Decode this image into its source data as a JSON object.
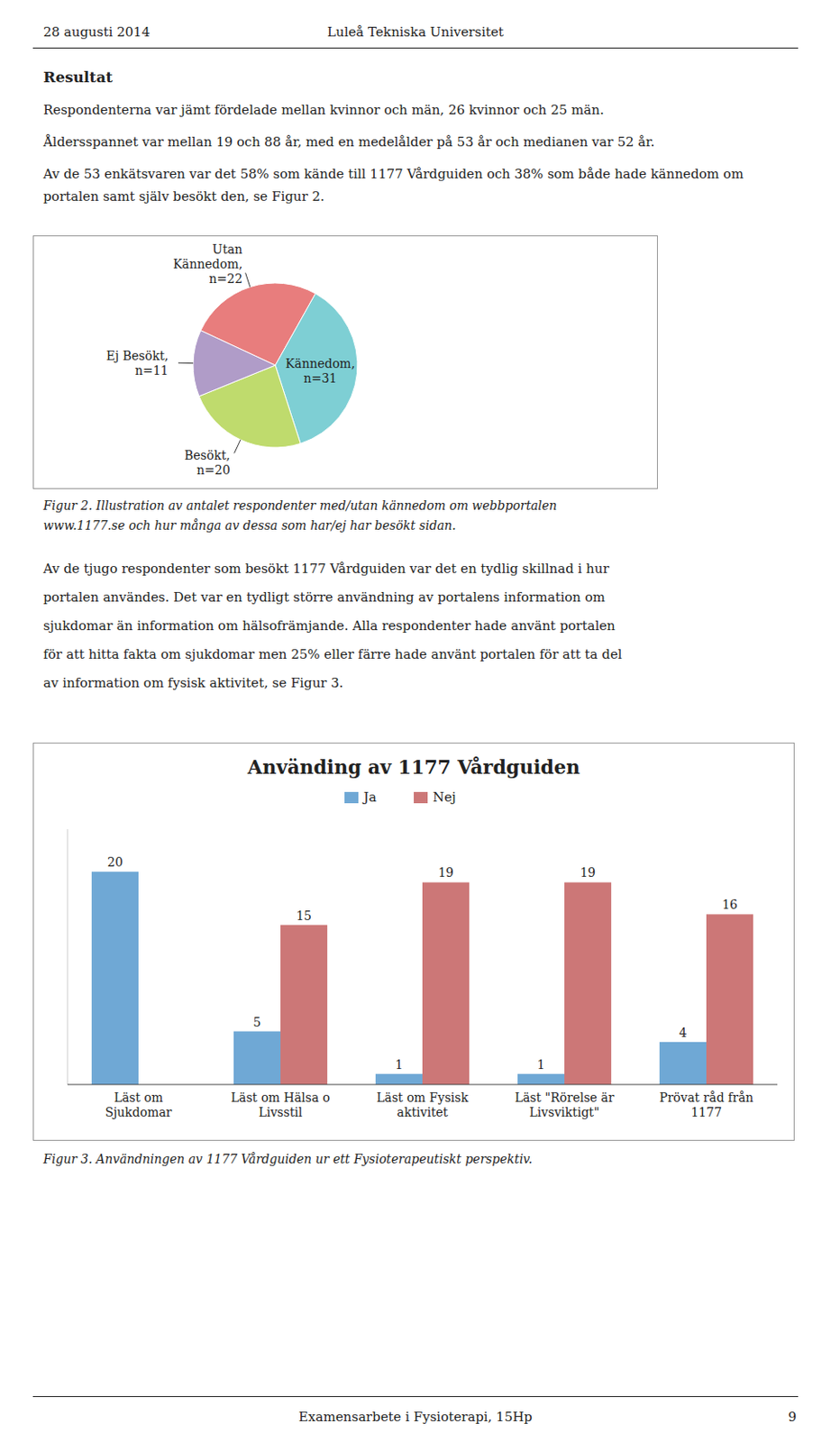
{
  "page": {
    "header_left": "28 augusti 2014",
    "header_center": "Luleå Tekniska Universitet",
    "section_title": "Resultat",
    "paragraph1": "Respondenterna var jämt fördelade mellan kvinnor och män, 26 kvinnor och 25 män.",
    "paragraph2": "Åldersspannet var mellan 19 och 88 år, med en medelålder på 53 år och medianen var 52 år.",
    "paragraph3": "Av de 53 enkätsvaren var det 58% som kände till 1177 Vårdguiden och 38% som både hade kännedom om portalen samt själv besökt den, se Figur 2.",
    "fig2_caption": [
      "Figur 2. Illustration av antalet respondenter med/utan kännedom om webbportalen",
      "www.1177.se och hur många av dessa som har/ej har besökt sidan."
    ],
    "paragraph4": [
      "Av de tjugo respondenter som besökt 1177 Vårdguiden var det en tydlig skillnad i hur",
      "portalen användes. Det var en tydligt större användning av portalens information om",
      "sjukdomar än information om hälsofrämjande. Alla respondenter hade använt portalen",
      "för att hitta fakta om sjukdomar men 25% eller färre hade använt portalen för att ta del",
      "av information om fysisk aktivitet, se Figur 3."
    ],
    "fig3_caption": "Figur 3. Användningen av 1177 Vårdguiden ur ett Fysioterapeutiskt perspektiv.",
    "footer": "Examensarbete i Fysioterapi, 15Hp",
    "footer_page": "9"
  },
  "chart_data": [
    {
      "type": "pie",
      "categories": [
        "Utan\nKännedom,\nn=22",
        "Kännedom,\nn=31",
        "Besökt,\nn=20",
        "Ej Besökt,\nn=11"
      ],
      "values": [
        22,
        31,
        20,
        11
      ],
      "colors": [
        "#E87D7D",
        "#7ECFD4",
        "#BFDB6D",
        "#B09CC8"
      ]
    },
    {
      "type": "bar",
      "title": "Använding av 1177 Vårdguiden",
      "categories": [
        "Läst om\nSjukdomar",
        "Läst om Hälsa o\nLivsstil",
        "Läst om Fysisk\naktivitet",
        "Läst \"Rörelse är\nLivsviktigt\"",
        "Prövat råd från\n1177"
      ],
      "series": [
        {
          "name": "Ja",
          "color": "#6FA8D5",
          "values": [
            20,
            5,
            1,
            1,
            4
          ]
        },
        {
          "name": "Nej",
          "color": "#CC7777",
          "values": [
            0,
            15,
            19,
            19,
            16
          ],
          "value_labels": [
            null,
            "15",
            "19",
            "19",
            "16"
          ]
        }
      ],
      "ylim": [
        0,
        24
      ],
      "yticks": [],
      "tick_labels": "x",
      "data_labels": true,
      "legend": "top"
    }
  ]
}
